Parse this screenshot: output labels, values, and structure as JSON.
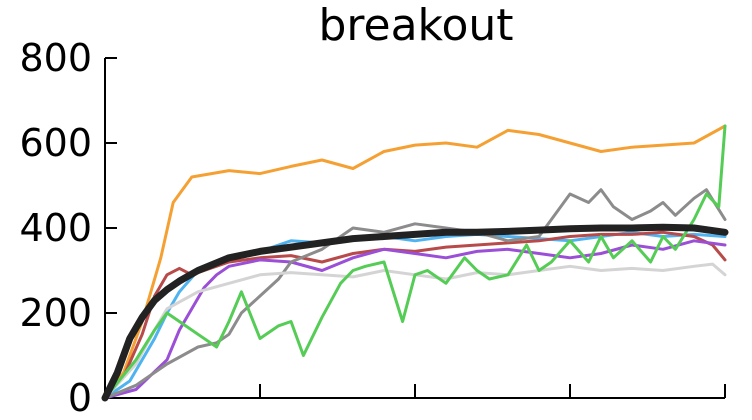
{
  "chart_data": {
    "type": "line",
    "title": "breakout",
    "xlabel": "",
    "ylabel": "",
    "xlim": [
      0,
      1
    ],
    "ylim": [
      0,
      800
    ],
    "yticks": [
      0,
      200,
      400,
      600,
      800
    ],
    "ytick_labels": [
      "0",
      "200",
      "400",
      "600",
      "800"
    ],
    "xticks": [
      0,
      0.25,
      0.5,
      0.75,
      1.0
    ],
    "xtick_labels": [
      "",
      "",
      "",
      "",
      ""
    ],
    "grid": false,
    "legend": "none",
    "series": [
      {
        "color": "#f5a033",
        "width": 3,
        "x": [
          0,
          0.03,
          0.06,
          0.09,
          0.11,
          0.12,
          0.14,
          0.16,
          0.2,
          0.25,
          0.3,
          0.35,
          0.4,
          0.45,
          0.5,
          0.55,
          0.6,
          0.65,
          0.7,
          0.75,
          0.8,
          0.85,
          0.9,
          0.95,
          1.0
        ],
        "y": [
          0,
          60,
          180,
          330,
          460,
          480,
          520,
          525,
          535,
          528,
          545,
          560,
          540,
          580,
          595,
          600,
          590,
          630,
          620,
          600,
          580,
          590,
          595,
          600,
          640
        ]
      },
      {
        "color": "#4fb3f0",
        "width": 3,
        "x": [
          0,
          0.04,
          0.08,
          0.1,
          0.12,
          0.15,
          0.2,
          0.25,
          0.3,
          0.35,
          0.4,
          0.45,
          0.5,
          0.55,
          0.6,
          0.65,
          0.7,
          0.75,
          0.8,
          0.85,
          0.9,
          0.95,
          1.0
        ],
        "y": [
          0,
          40,
          140,
          200,
          250,
          300,
          330,
          345,
          370,
          365,
          375,
          380,
          370,
          380,
          385,
          380,
          375,
          370,
          380,
          390,
          380,
          385,
          380
        ]
      },
      {
        "color": "#b84a4a",
        "width": 3,
        "x": [
          0,
          0.03,
          0.06,
          0.08,
          0.1,
          0.12,
          0.14,
          0.16,
          0.2,
          0.25,
          0.3,
          0.35,
          0.4,
          0.45,
          0.5,
          0.55,
          0.6,
          0.65,
          0.7,
          0.75,
          0.8,
          0.85,
          0.9,
          0.95,
          0.98,
          1.0
        ],
        "y": [
          0,
          50,
          150,
          240,
          290,
          305,
          290,
          300,
          320,
          330,
          335,
          320,
          340,
          350,
          345,
          355,
          360,
          365,
          370,
          380,
          385,
          385,
          390,
          380,
          360,
          325
        ]
      },
      {
        "color": "#9b4fd6",
        "width": 3,
        "x": [
          0,
          0.05,
          0.1,
          0.12,
          0.14,
          0.16,
          0.18,
          0.2,
          0.25,
          0.3,
          0.35,
          0.4,
          0.45,
          0.5,
          0.55,
          0.6,
          0.65,
          0.7,
          0.75,
          0.8,
          0.85,
          0.9,
          0.95,
          1.0
        ],
        "y": [
          0,
          20,
          90,
          160,
          210,
          260,
          290,
          310,
          325,
          320,
          300,
          330,
          350,
          340,
          330,
          345,
          350,
          340,
          330,
          340,
          360,
          350,
          370,
          360
        ]
      },
      {
        "color": "#8c8c8c",
        "width": 3,
        "x": [
          0,
          0.05,
          0.1,
          0.15,
          0.18,
          0.2,
          0.22,
          0.25,
          0.28,
          0.3,
          0.35,
          0.4,
          0.45,
          0.5,
          0.55,
          0.6,
          0.65,
          0.7,
          0.72,
          0.75,
          0.78,
          0.8,
          0.82,
          0.85,
          0.88,
          0.9,
          0.92,
          0.95,
          0.97,
          1.0
        ],
        "y": [
          0,
          30,
          80,
          120,
          130,
          150,
          200,
          240,
          280,
          320,
          350,
          400,
          390,
          410,
          400,
          390,
          370,
          380,
          420,
          480,
          460,
          490,
          450,
          420,
          440,
          460,
          430,
          470,
          490,
          420
        ]
      },
      {
        "color": "#d4d4d4",
        "width": 3,
        "x": [
          0,
          0.05,
          0.08,
          0.1,
          0.15,
          0.2,
          0.25,
          0.3,
          0.35,
          0.4,
          0.45,
          0.5,
          0.55,
          0.6,
          0.65,
          0.7,
          0.75,
          0.8,
          0.85,
          0.9,
          0.95,
          0.98,
          1.0
        ],
        "y": [
          0,
          80,
          160,
          210,
          250,
          270,
          290,
          295,
          290,
          285,
          300,
          290,
          280,
          295,
          290,
          300,
          310,
          300,
          305,
          300,
          310,
          315,
          290
        ]
      },
      {
        "color": "#55cc55",
        "width": 3,
        "x": [
          0,
          0.05,
          0.08,
          0.1,
          0.12,
          0.15,
          0.18,
          0.2,
          0.22,
          0.25,
          0.28,
          0.3,
          0.32,
          0.35,
          0.38,
          0.4,
          0.42,
          0.45,
          0.48,
          0.5,
          0.52,
          0.55,
          0.58,
          0.6,
          0.62,
          0.65,
          0.68,
          0.7,
          0.72,
          0.75,
          0.78,
          0.8,
          0.82,
          0.85,
          0.88,
          0.9,
          0.92,
          0.95,
          0.97,
          0.99,
          1.0
        ],
        "y": [
          0,
          90,
          160,
          200,
          180,
          150,
          120,
          180,
          250,
          140,
          170,
          180,
          100,
          190,
          270,
          300,
          310,
          320,
          180,
          290,
          300,
          270,
          330,
          300,
          280,
          290,
          360,
          300,
          320,
          370,
          320,
          380,
          330,
          370,
          320,
          380,
          350,
          420,
          480,
          450,
          640
        ]
      },
      {
        "color": "#222222",
        "width": 7,
        "x": [
          0,
          0.02,
          0.04,
          0.06,
          0.08,
          0.1,
          0.12,
          0.15,
          0.2,
          0.25,
          0.3,
          0.35,
          0.4,
          0.45,
          0.5,
          0.55,
          0.6,
          0.65,
          0.7,
          0.75,
          0.8,
          0.85,
          0.9,
          0.95,
          1.0
        ],
        "y": [
          0,
          60,
          140,
          190,
          230,
          255,
          275,
          300,
          330,
          345,
          355,
          365,
          375,
          380,
          385,
          390,
          390,
          392,
          395,
          398,
          400,
          400,
          402,
          400,
          390
        ]
      }
    ]
  }
}
